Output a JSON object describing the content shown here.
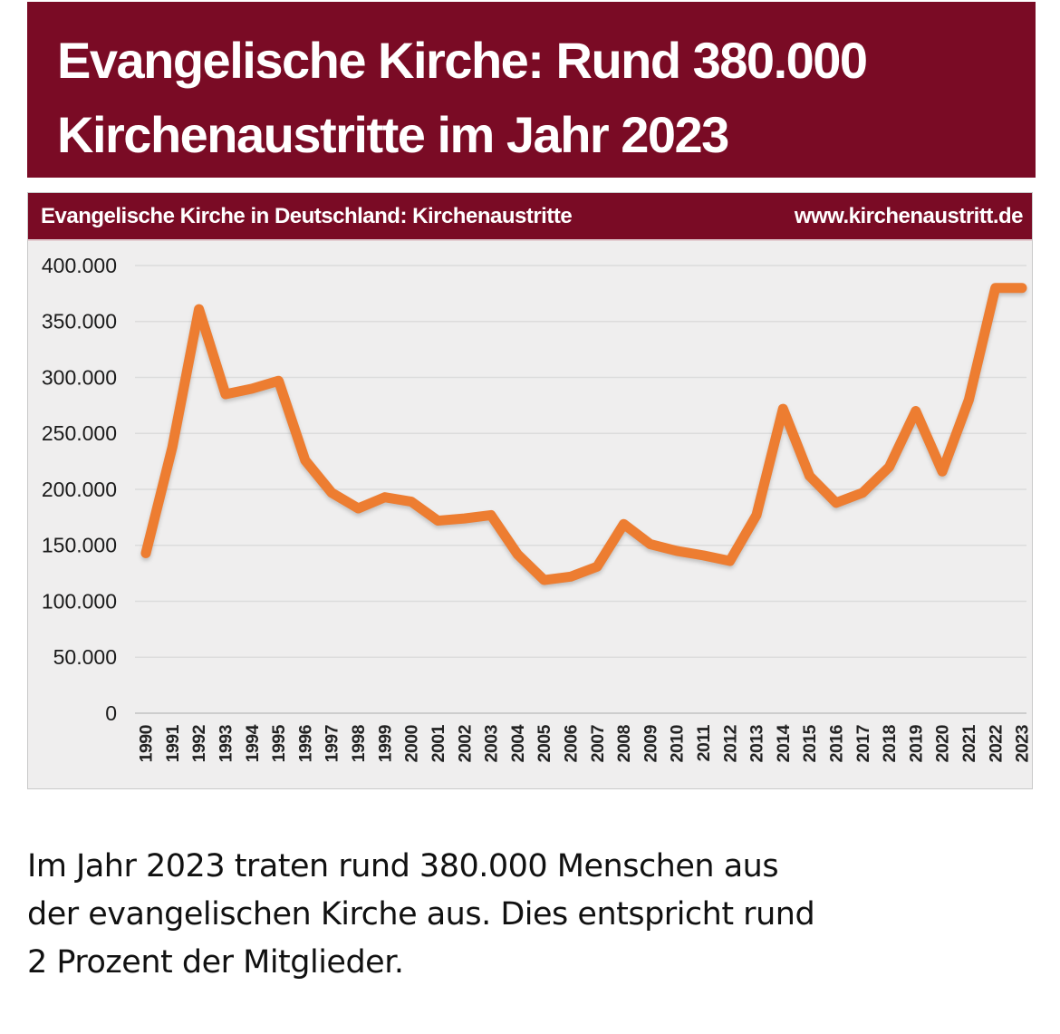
{
  "banner": {
    "bg_color": "#7A0B25",
    "title_line1": "Evangelische Kirche: Rund 380.000",
    "title_line2": "Kirchenaustritte im Jahr 2023"
  },
  "chart": {
    "header_left": "Evangelische Kirche in Deutschland: Kirchenaustritte",
    "header_right": "www.kirchenaustritt.de",
    "header_bg": "#7A0B25",
    "plot_bg": "#EFEEEE",
    "line_color": "#ED7D31",
    "grid_color": "#DCDCDC",
    "axis_color": "#C2C2C2",
    "tick_text_color": "#1B1B1B"
  },
  "chart_data": {
    "type": "line",
    "title": "Evangelische Kirche in Deutschland: Kirchenaustritte",
    "source_label": "www.kirchenaustritt.de",
    "x": [
      1990,
      1991,
      1992,
      1993,
      1994,
      1995,
      1996,
      1997,
      1998,
      1999,
      2000,
      2001,
      2002,
      2003,
      2004,
      2005,
      2006,
      2007,
      2008,
      2009,
      2010,
      2011,
      2012,
      2013,
      2014,
      2015,
      2016,
      2017,
      2018,
      2019,
      2020,
      2021,
      2022,
      2023
    ],
    "values": [
      143000,
      238000,
      361000,
      285000,
      290000,
      297000,
      226000,
      197000,
      183000,
      193000,
      189000,
      172000,
      174000,
      177000,
      142000,
      119000,
      122000,
      131000,
      169000,
      151000,
      145000,
      141000,
      136000,
      177000,
      272000,
      212000,
      188000,
      197000,
      220000,
      270000,
      216000,
      280000,
      380000,
      380000
    ],
    "series_name": "Kirchenaustritte",
    "xlabel": "",
    "ylabel": "",
    "ylim": [
      0,
      400000
    ],
    "yticks": [
      0,
      50000,
      100000,
      150000,
      200000,
      250000,
      300000,
      350000,
      400000
    ],
    "ytick_labels": [
      "0",
      "50.000",
      "100.000",
      "150.000",
      "200.000",
      "250.000",
      "300.000",
      "350.000",
      "400.000"
    ],
    "grid": "horizontal",
    "legend": "none",
    "line_width": 11
  },
  "paragraph": {
    "lines": [
      "Im Jahr 2023 traten rund 380.000 Menschen aus",
      "der evangelischen Kirche aus. Dies entspricht rund",
      "2 Prozent der Mitglieder."
    ]
  }
}
